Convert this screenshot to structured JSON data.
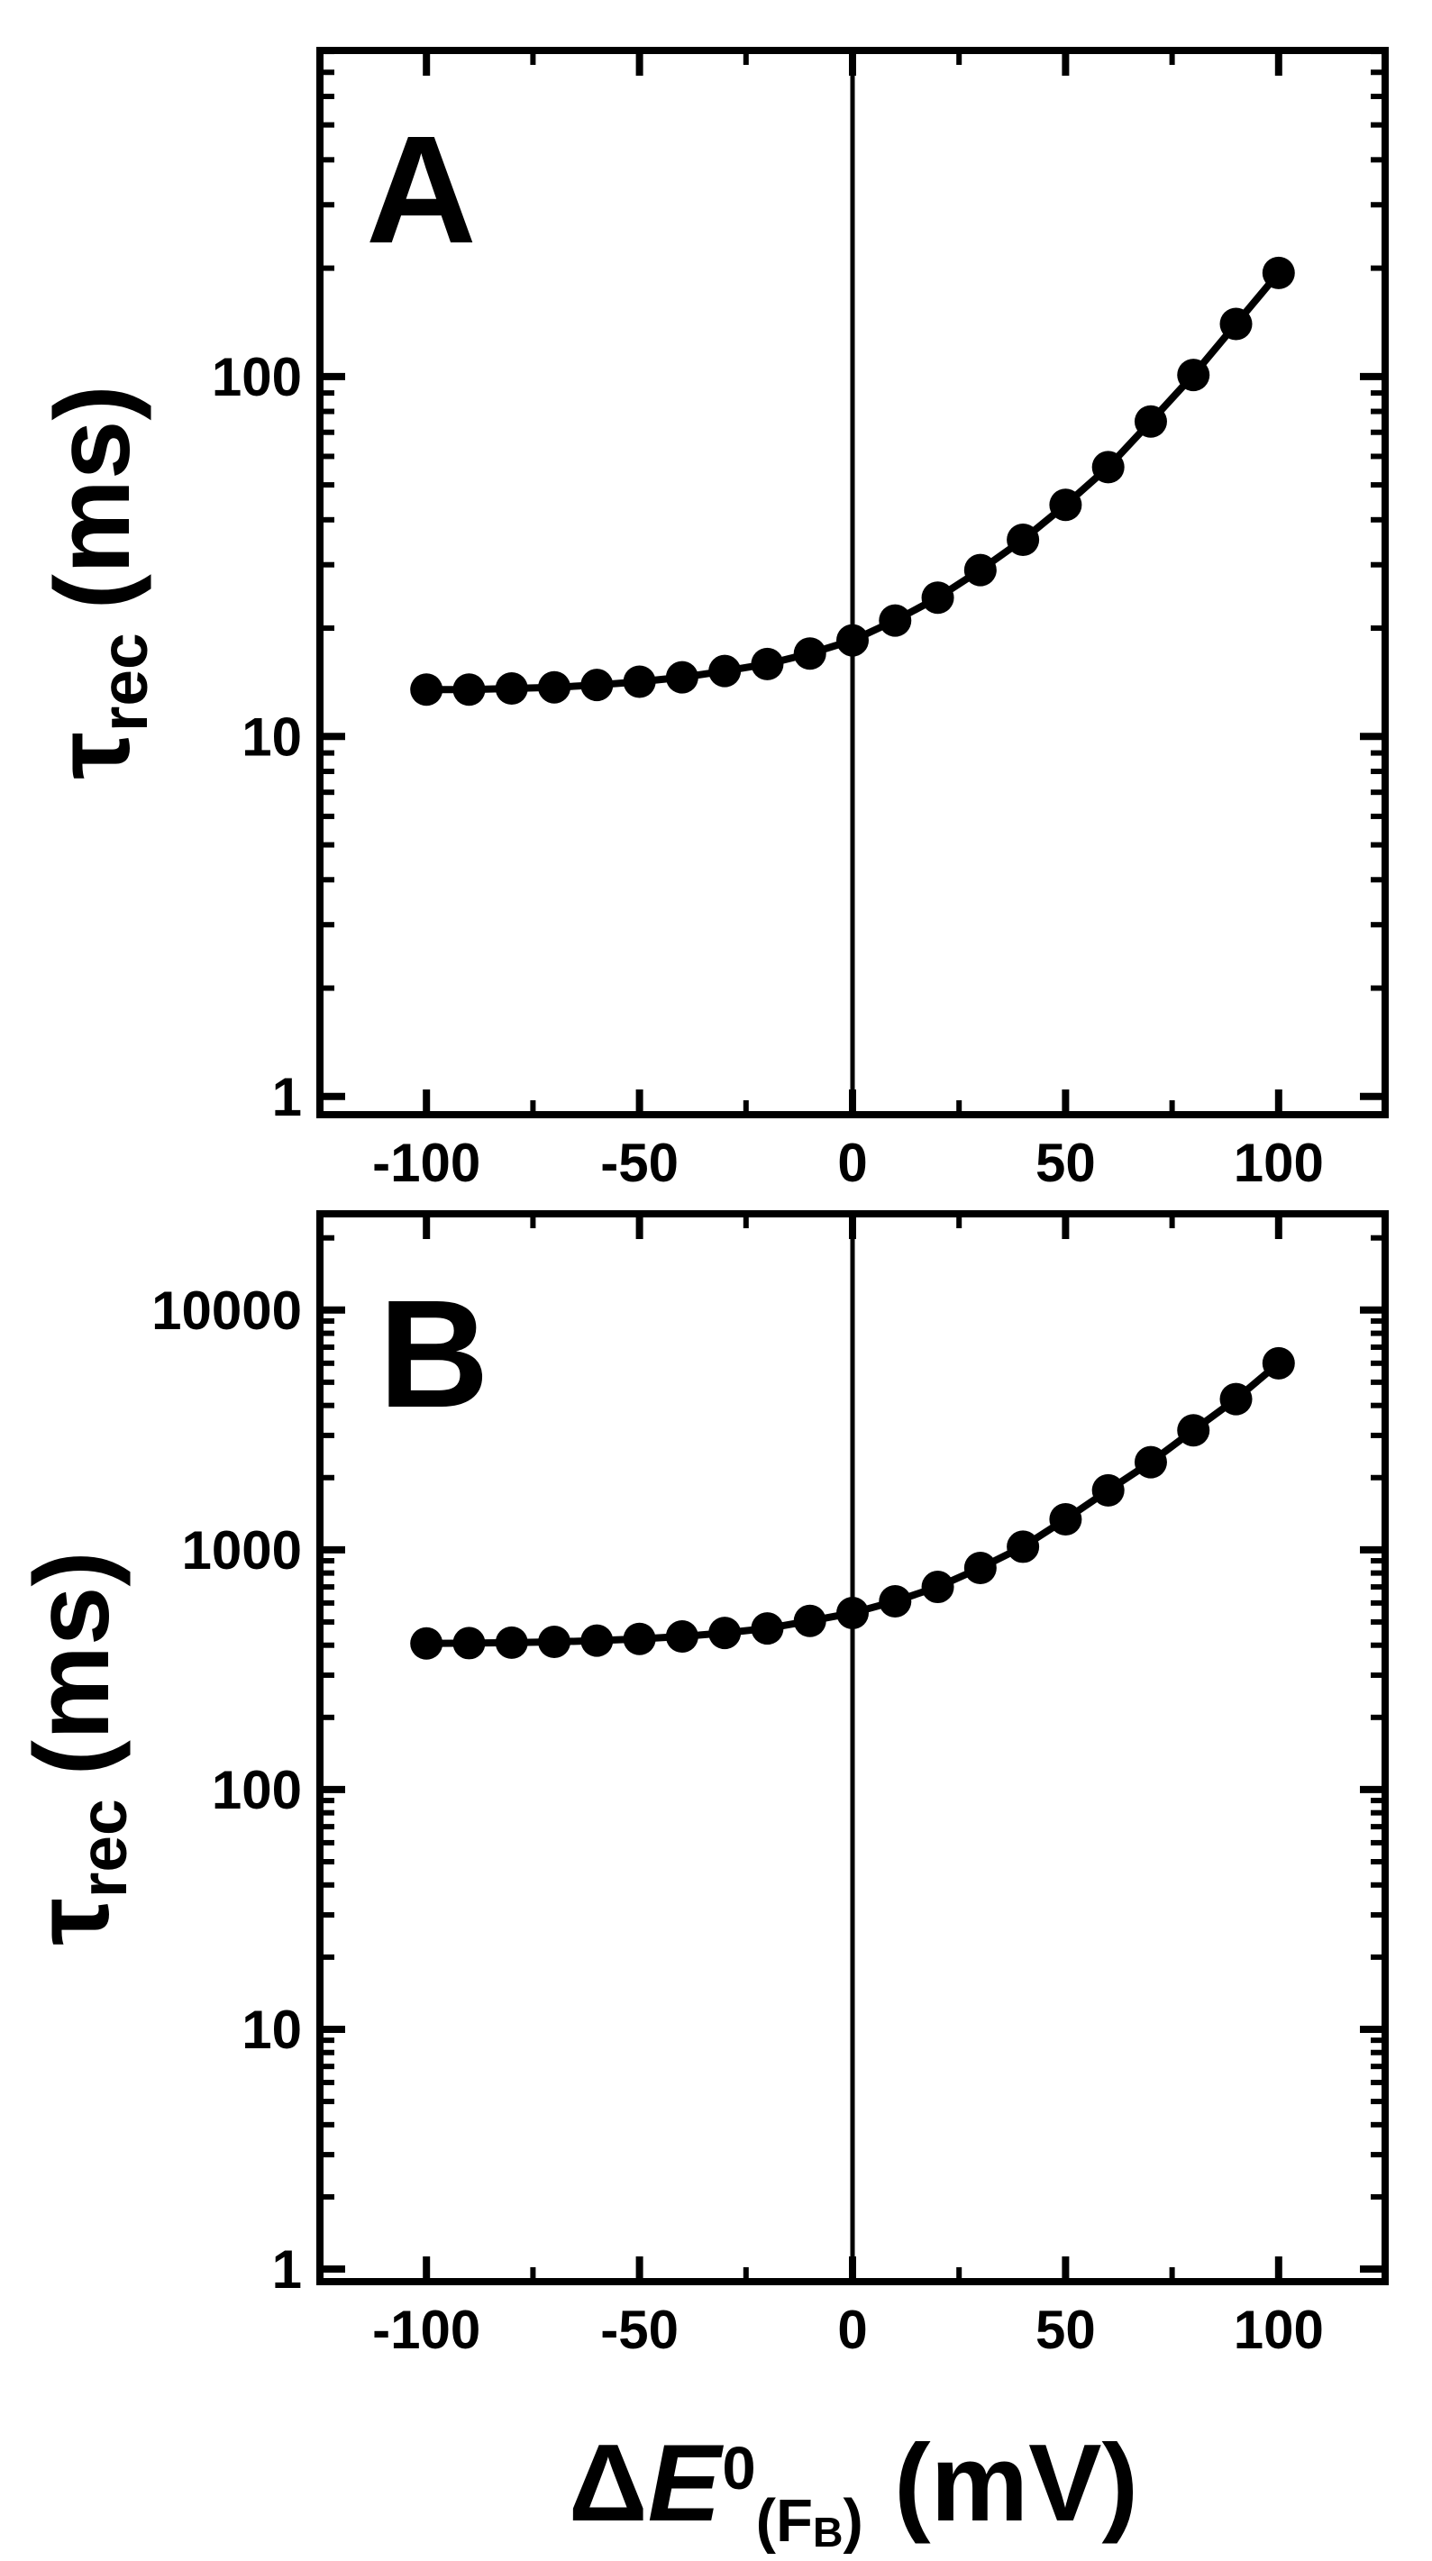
{
  "figure": {
    "background": "#ffffff",
    "ink": "#000000",
    "panels": [
      {
        "label": "A",
        "y_axis_title": {
          "symbol": "τ",
          "subscript": "rec",
          "unit": "(ms)"
        }
      },
      {
        "label": "B",
        "y_axis_title": {
          "symbol": "τ",
          "subscript": "rec",
          "unit": "(ms)"
        }
      }
    ],
    "x_axis_title": {
      "prefix": "Δ",
      "symbol": "E",
      "superscript": "0",
      "subscript_open": "(F",
      "subscript_sub": "B",
      "subscript_close": ")",
      "unit": "(mV)"
    }
  },
  "chart_data": [
    {
      "panel": "A",
      "type": "line",
      "marker": "filled-circle",
      "marker_color": "#000000",
      "line_color": "#000000",
      "xlabel": "ΔE0(FB) (mV)",
      "ylabel": "τrec (ms)",
      "y_scale": "log",
      "xlim": [
        -125,
        125
      ],
      "ylim": [
        0.89,
        805
      ],
      "x_major_ticks": [
        -100,
        -50,
        0,
        50,
        100
      ],
      "x_major_tick_labels": [
        "-100",
        "-50",
        "0",
        "50",
        "100"
      ],
      "x_minor_step": 25,
      "y_decade_tick_labels": [
        "1",
        "10",
        "100"
      ],
      "zero_line_x": 0,
      "grid": false,
      "legend": null,
      "x_mV": [
        -100,
        -90,
        -80,
        -70,
        -60,
        -50,
        -40,
        -30,
        -20,
        -10,
        0,
        10,
        20,
        30,
        40,
        50,
        60,
        70,
        80,
        90,
        100
      ],
      "tau_ms": [
        13.5,
        13.5,
        13.6,
        13.7,
        13.9,
        14.2,
        14.6,
        15.2,
        15.9,
        17.0,
        18.5,
        21.0,
        24.3,
        29.0,
        35.2,
        44.0,
        56.0,
        75.0,
        101,
        140,
        194
      ]
    },
    {
      "panel": "B",
      "type": "line",
      "marker": "filled-circle",
      "marker_color": "#000000",
      "line_color": "#000000",
      "xlabel": "ΔE0(FB) (mV)",
      "ylabel": "τrec (ms)",
      "y_scale": "log",
      "xlim": [
        -125,
        125
      ],
      "ylim": [
        0.886,
        25200
      ],
      "x_major_ticks": [
        -100,
        -50,
        0,
        50,
        100
      ],
      "x_major_tick_labels": [
        "-100",
        "-50",
        "0",
        "50",
        "100"
      ],
      "x_minor_step": 25,
      "y_decade_tick_labels": [
        "1",
        "10",
        "100",
        "1000",
        "10000"
      ],
      "zero_line_x": 0,
      "grid": false,
      "legend": null,
      "x_mV": [
        -100,
        -90,
        -80,
        -70,
        -60,
        -50,
        -40,
        -30,
        -20,
        -10,
        0,
        10,
        20,
        30,
        40,
        50,
        60,
        70,
        80,
        90,
        100
      ],
      "tau_ms": [
        407,
        408,
        410,
        413,
        418,
        425,
        435,
        450,
        470,
        505,
        545,
        610,
        700,
        840,
        1030,
        1340,
        1770,
        2320,
        3150,
        4250,
        6000
      ]
    }
  ]
}
